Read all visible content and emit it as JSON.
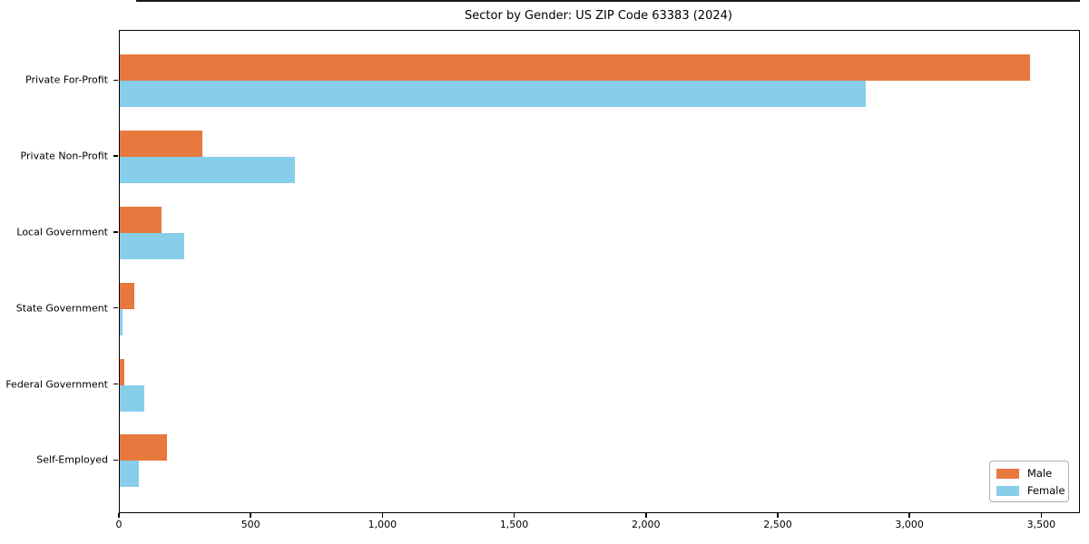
{
  "title": "Sector by Gender: US ZIP Code 63383 (2024)",
  "chart_data": {
    "type": "bar",
    "orientation": "horizontal",
    "title": "Sector by Gender: US ZIP Code 63383 (2024)",
    "categories": [
      "Private For-Profit",
      "Private Non-Profit",
      "Local Government",
      "State Government",
      "Federal Government",
      "Self-Employed"
    ],
    "series": [
      {
        "name": "Male",
        "color": "#e8793e",
        "values": [
          3455,
          313,
          157,
          55,
          18,
          178
        ]
      },
      {
        "name": "Female",
        "color": "#87ceeb",
        "values": [
          2832,
          666,
          246,
          10,
          92,
          71
        ]
      }
    ],
    "xlabel": "",
    "ylabel": "",
    "xlim": [
      0,
      3640
    ],
    "xticks": [
      0,
      500,
      1000,
      1500,
      2000,
      2500,
      3000,
      3500
    ],
    "xtick_labels": [
      "0",
      "500",
      "1,000",
      "1,500",
      "2,000",
      "2,500",
      "3,000",
      "3,500"
    ],
    "grid": false,
    "legend_position": "lower right"
  },
  "legend": {
    "male_label": "Male",
    "female_label": "Female"
  }
}
